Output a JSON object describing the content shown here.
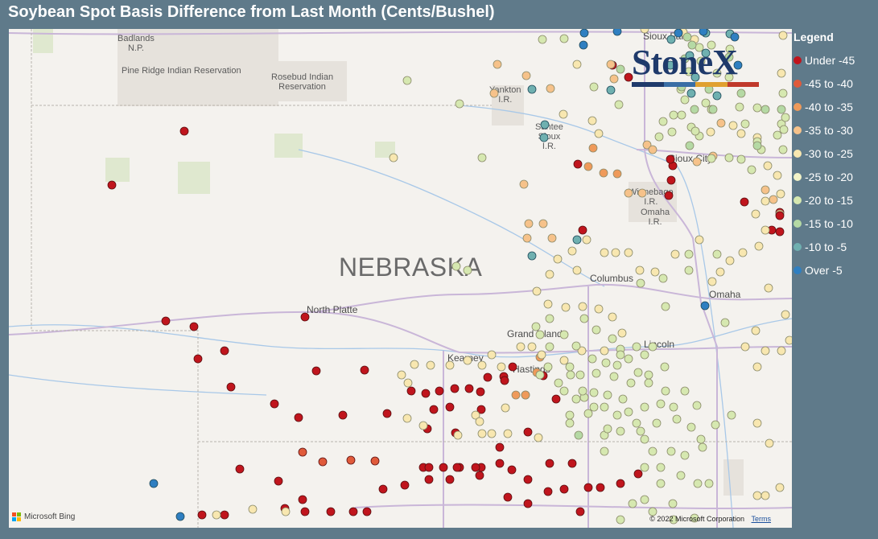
{
  "title": "Soybean Spot Basis Difference from Last Month (Cents/Bushel)",
  "logo": {
    "text": "StoneX",
    "colors": [
      "#1f3a6b",
      "#3a6ea5",
      "#e0a030",
      "#c0392b"
    ]
  },
  "legend": {
    "title": "Legend",
    "items": [
      {
        "label": "Under -45",
        "color": "#c0151d"
      },
      {
        "label": "-45 to -40",
        "color": "#e05a3a"
      },
      {
        "label": "-40 to -35",
        "color": "#ef9a5a"
      },
      {
        "label": "-35 to -30",
        "color": "#f6c28a"
      },
      {
        "label": "-30 to -25",
        "color": "#f8e7b0"
      },
      {
        "label": "-25 to -20",
        "color": "#f2f3c8"
      },
      {
        "label": "-20 to -15",
        "color": "#d6e8b0"
      },
      {
        "label": "-15 to -10",
        "color": "#b5d9a4"
      },
      {
        "label": "-10 to -5",
        "color": "#6fb0b0"
      },
      {
        "label": "Over -5",
        "color": "#2f7fc1"
      }
    ]
  },
  "map": {
    "state_label": "NEBRASKA",
    "places": [
      {
        "name": "Badlands\nN.P."
      },
      {
        "name": "Pine Ridge Indian Reservation"
      },
      {
        "name": "Rosebud Indian\nReservation"
      },
      {
        "name": "Yankton\nI.R."
      },
      {
        "name": "Santee\nSioux\nI.R."
      },
      {
        "name": "Sioux City"
      },
      {
        "name": "Winnebago\nI.R."
      },
      {
        "name": "Omaha\nI.R."
      },
      {
        "name": "Columbus"
      },
      {
        "name": "Omaha"
      },
      {
        "name": "North Platte"
      },
      {
        "name": "Grand Island"
      },
      {
        "name": "Kearney"
      },
      {
        "name": "Hastings"
      },
      {
        "name": "Lincoln"
      },
      {
        "name": "Sioux Falls"
      }
    ],
    "attribution": "Microsoft Bing",
    "copyright": "© 2022 Microsoft Corporation",
    "terms_label": "Terms"
  }
}
